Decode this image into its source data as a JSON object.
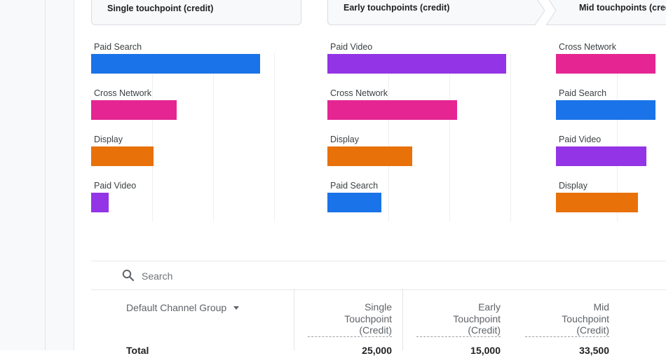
{
  "steps": [
    {
      "label": "Single touchpoint (credit)"
    },
    {
      "label": "Early touchpoints (credit)"
    },
    {
      "label": "Mid touchpoints (cred"
    }
  ],
  "colors": {
    "paid_search": "#1a73e8",
    "cross_network": "#e52592",
    "display": "#e8710a",
    "paid_video": "#9334e6"
  },
  "chart_data": [
    {
      "type": "bar",
      "categories": [
        "Paid Search",
        "Cross Network",
        "Display",
        "Paid Video"
      ],
      "values": [
        25000,
        12600,
        9200,
        2600
      ],
      "xlim": [
        0,
        26000
      ],
      "colors": [
        "#1a73e8",
        "#e52592",
        "#e8710a",
        "#9334e6"
      ]
    },
    {
      "type": "bar",
      "categories": [
        "Paid Video",
        "Cross Network",
        "Display",
        "Paid Search"
      ],
      "values": [
        15000,
        10900,
        7100,
        4500
      ],
      "xlim": [
        0,
        15400
      ],
      "colors": [
        "#9334e6",
        "#e52592",
        "#e8710a",
        "#1a73e8"
      ]
    },
    {
      "type": "bar",
      "categories": [
        "Cross Network",
        "Paid Search",
        "Paid Video",
        "Display"
      ],
      "values": [
        33500,
        33500,
        30500,
        27500
      ],
      "xlim": [
        0,
        33000
      ],
      "colors": [
        "#e52592",
        "#1a73e8",
        "#9334e6",
        "#e8710a"
      ]
    }
  ],
  "search": {
    "placeholder": "Search"
  },
  "table": {
    "dimension": "Default Channel Group",
    "columns": [
      {
        "lines": [
          "Single",
          "Touchpoint",
          "(Credit)"
        ]
      },
      {
        "lines": [
          "Early",
          "Touchpoint",
          "(Credit)"
        ]
      },
      {
        "lines": [
          "Mid",
          "Touchpoint",
          "(Credit)"
        ]
      }
    ],
    "total_label": "Total",
    "totals": [
      "25,000",
      "15,000",
      "33,500"
    ]
  }
}
